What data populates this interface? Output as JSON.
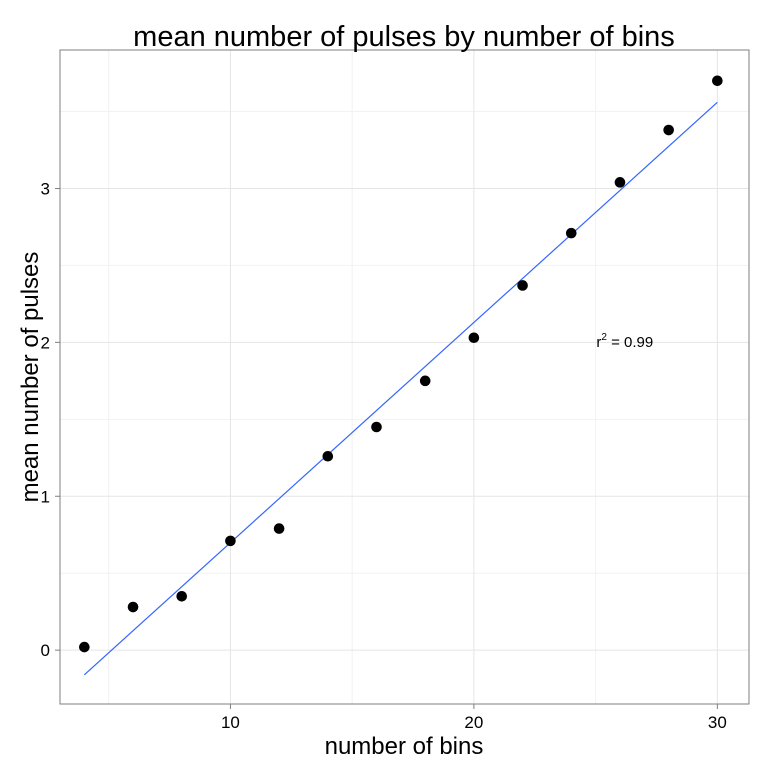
{
  "chart_data": {
    "type": "scatter",
    "title": "mean number of pulses by number of bins",
    "xlabel": "number of bins",
    "ylabel": "mean number of pulses",
    "xlim": [
      3.0,
      31.3
    ],
    "ylim": [
      -0.35,
      3.9
    ],
    "x_ticks": [
      10,
      20,
      30
    ],
    "y_ticks": [
      0,
      1,
      2,
      3
    ],
    "x_tick_labels": [
      "10",
      "20",
      "30"
    ],
    "y_tick_labels": [
      "0",
      "1",
      "2",
      "3"
    ],
    "grid": true,
    "series": [
      {
        "x": [
          4,
          6,
          8,
          10,
          12,
          14,
          16,
          18,
          20,
          22,
          24,
          26,
          28,
          30
        ],
        "y": [
          0.02,
          0.28,
          0.35,
          0.71,
          0.79,
          1.26,
          1.45,
          1.75,
          2.03,
          2.37,
          2.71,
          3.04,
          3.38,
          3.7
        ],
        "color": "#000000"
      }
    ],
    "fit_line": {
      "x": [
        4,
        30
      ],
      "y": [
        -0.16,
        3.56
      ],
      "color": "#3366FF"
    },
    "annotation": {
      "base": "r",
      "superscript": "2",
      "text": " = 0.99",
      "x": 26.2,
      "y": 1.97
    }
  }
}
